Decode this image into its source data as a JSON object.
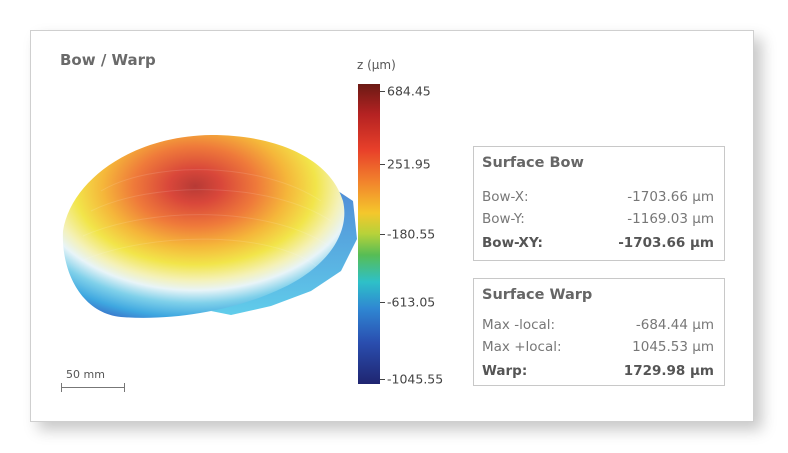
{
  "title": "Bow / Warp",
  "colorbar": {
    "unit": "z (µm)",
    "ticks": [
      "684.45",
      "251.95",
      "-180.55",
      "-613.05",
      "-1045.55"
    ]
  },
  "surface_bow": {
    "title": "Surface Bow",
    "rows": [
      {
        "label": "Bow-X:",
        "value": "-1703.66 µm"
      },
      {
        "label": "Bow-Y:",
        "value": "-1169.03 µm"
      },
      {
        "label": "Bow-XY:",
        "value": "-1703.66 µm"
      }
    ]
  },
  "surface_warp": {
    "title": "Surface Warp",
    "rows": [
      {
        "label": "Max -local:",
        "value": "-684.44 µm"
      },
      {
        "label": "Max +local:",
        "value": "1045.53 µm"
      },
      {
        "label": "Warp:",
        "value": "1729.98 µm"
      }
    ]
  },
  "scale_bar": {
    "label": "50 mm"
  }
}
